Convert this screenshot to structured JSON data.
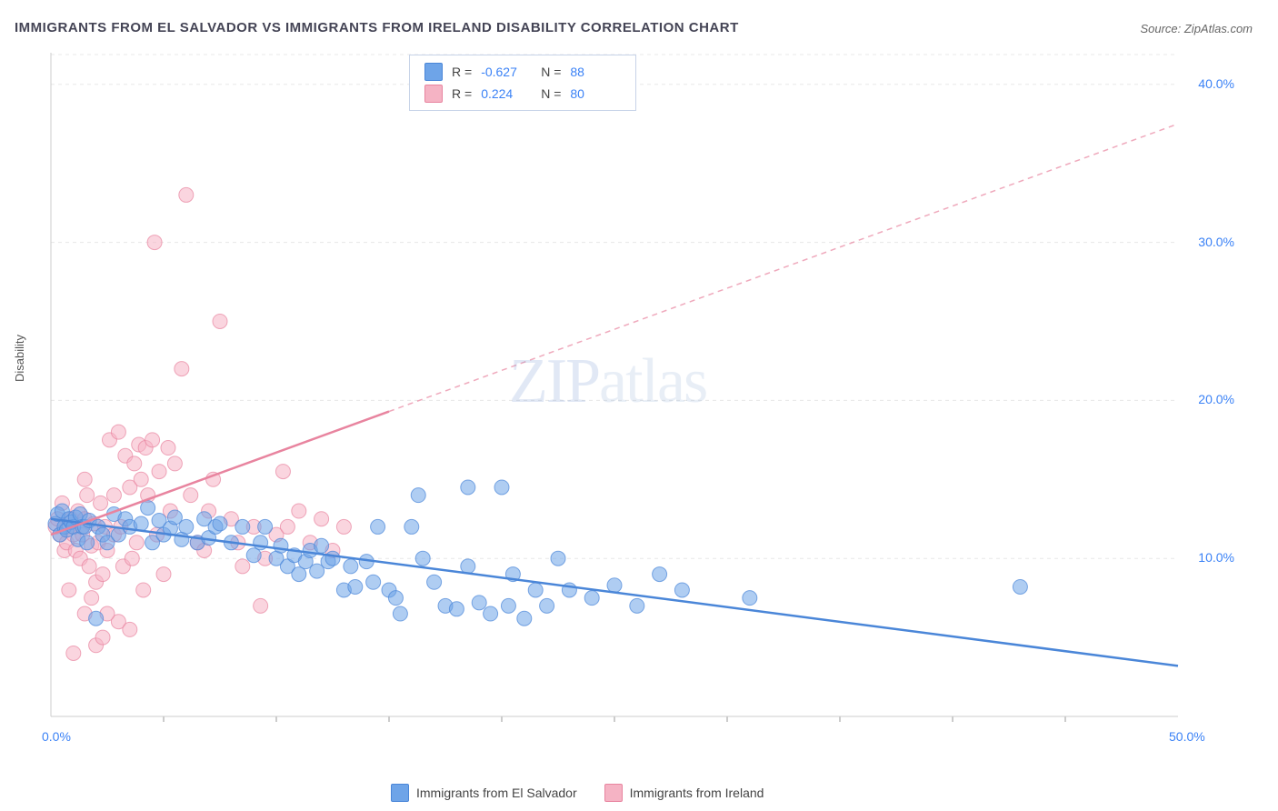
{
  "title": "IMMIGRANTS FROM EL SALVADOR VS IMMIGRANTS FROM IRELAND DISABILITY CORRELATION CHART",
  "source": "Source: ZipAtlas.com",
  "ylabel": "Disability",
  "watermark": {
    "a": "ZIP",
    "b": "atlas"
  },
  "chart": {
    "type": "scatter",
    "background_color": "#ffffff",
    "grid_color": "#e8e8e8",
    "border_color": "#cccccc",
    "xlim": [
      0,
      50
    ],
    "ylim": [
      0,
      42
    ],
    "x_ticks": [
      {
        "v": 0,
        "l": "0.0%"
      },
      {
        "v": 50,
        "l": "50.0%"
      }
    ],
    "y_ticks": [
      {
        "v": 10,
        "l": "10.0%"
      },
      {
        "v": 20,
        "l": "20.0%"
      },
      {
        "v": 30,
        "l": "30.0%"
      },
      {
        "v": 40,
        "l": "40.0%"
      }
    ],
    "x_minor_ticks": [
      5,
      10,
      15,
      20,
      25,
      30,
      35,
      40,
      45
    ],
    "marker_radius": 8,
    "marker_opacity": 0.55,
    "series": [
      {
        "key": "el_salvador",
        "label": "Immigrants from El Salvador",
        "color": "#6ea4e8",
        "stroke": "#4a86d8",
        "R": "-0.627",
        "N": "88",
        "trend": {
          "x1": 0,
          "y1": 12.5,
          "x2": 50,
          "y2": 3.2,
          "dash_from_x": 50
        },
        "points": [
          [
            0.2,
            12.2
          ],
          [
            0.3,
            12.8
          ],
          [
            0.4,
            11.5
          ],
          [
            0.5,
            13.0
          ],
          [
            0.6,
            12.0
          ],
          [
            0.7,
            11.8
          ],
          [
            0.8,
            12.5
          ],
          [
            0.9,
            12.3
          ],
          [
            1.0,
            12.0
          ],
          [
            1.1,
            12.6
          ],
          [
            1.2,
            11.2
          ],
          [
            1.3,
            12.8
          ],
          [
            1.4,
            12.0
          ],
          [
            1.5,
            12.0
          ],
          [
            1.6,
            11.0
          ],
          [
            1.7,
            12.4
          ],
          [
            2.0,
            6.2
          ],
          [
            2.1,
            12.0
          ],
          [
            2.3,
            11.5
          ],
          [
            2.5,
            11.0
          ],
          [
            2.8,
            12.8
          ],
          [
            3.0,
            11.5
          ],
          [
            3.3,
            12.5
          ],
          [
            3.5,
            12.0
          ],
          [
            4.0,
            12.2
          ],
          [
            4.3,
            13.2
          ],
          [
            4.5,
            11.0
          ],
          [
            4.8,
            12.4
          ],
          [
            5.0,
            11.5
          ],
          [
            5.3,
            11.9
          ],
          [
            5.5,
            12.6
          ],
          [
            5.8,
            11.2
          ],
          [
            6.0,
            12.0
          ],
          [
            6.5,
            11.0
          ],
          [
            6.8,
            12.5
          ],
          [
            7.0,
            11.3
          ],
          [
            7.3,
            12.0
          ],
          [
            7.5,
            12.2
          ],
          [
            8.0,
            11.0
          ],
          [
            8.5,
            12.0
          ],
          [
            9.0,
            10.2
          ],
          [
            9.3,
            11.0
          ],
          [
            9.5,
            12.0
          ],
          [
            10.0,
            10.0
          ],
          [
            10.2,
            10.8
          ],
          [
            10.5,
            9.5
          ],
          [
            10.8,
            10.2
          ],
          [
            11.0,
            9.0
          ],
          [
            11.3,
            9.8
          ],
          [
            11.5,
            10.5
          ],
          [
            11.8,
            9.2
          ],
          [
            12.0,
            10.8
          ],
          [
            12.3,
            9.8
          ],
          [
            12.5,
            10.0
          ],
          [
            13.0,
            8.0
          ],
          [
            13.3,
            9.5
          ],
          [
            13.5,
            8.2
          ],
          [
            14.0,
            9.8
          ],
          [
            14.3,
            8.5
          ],
          [
            14.5,
            12.0
          ],
          [
            15.0,
            8.0
          ],
          [
            15.3,
            7.5
          ],
          [
            15.5,
            6.5
          ],
          [
            16.0,
            12.0
          ],
          [
            16.3,
            14.0
          ],
          [
            16.5,
            10.0
          ],
          [
            17.0,
            8.5
          ],
          [
            17.5,
            7.0
          ],
          [
            18.0,
            6.8
          ],
          [
            18.5,
            9.5
          ],
          [
            19.0,
            7.2
          ],
          [
            19.5,
            6.5
          ],
          [
            20.0,
            14.5
          ],
          [
            20.3,
            7.0
          ],
          [
            20.5,
            9.0
          ],
          [
            21.0,
            6.2
          ],
          [
            21.5,
            8.0
          ],
          [
            22.0,
            7.0
          ],
          [
            22.5,
            10.0
          ],
          [
            23.0,
            8.0
          ],
          [
            24.0,
            7.5
          ],
          [
            25.0,
            8.3
          ],
          [
            26.0,
            7.0
          ],
          [
            27.0,
            9.0
          ],
          [
            28.0,
            8.0
          ],
          [
            31.0,
            7.5
          ],
          [
            43.0,
            8.2
          ],
          [
            18.5,
            14.5
          ]
        ]
      },
      {
        "key": "ireland",
        "label": "Immigrants from Ireland",
        "color": "#f5b3c4",
        "stroke": "#e8849f",
        "R": "0.224",
        "N": "80",
        "trend": {
          "x1": 0,
          "y1": 11.5,
          "x2": 50,
          "y2": 37.5,
          "dash_from_x": 15
        },
        "points": [
          [
            0.2,
            12.0
          ],
          [
            0.3,
            12.5
          ],
          [
            0.4,
            11.5
          ],
          [
            0.5,
            13.5
          ],
          [
            0.6,
            10.5
          ],
          [
            0.7,
            11.0
          ],
          [
            0.8,
            12.0
          ],
          [
            0.9,
            12.5
          ],
          [
            1.0,
            11.5
          ],
          [
            1.1,
            10.5
          ],
          [
            1.2,
            13.0
          ],
          [
            1.3,
            10.0
          ],
          [
            1.4,
            11.5
          ],
          [
            1.5,
            12.5
          ],
          [
            1.6,
            14.0
          ],
          [
            1.7,
            9.5
          ],
          [
            1.8,
            10.8
          ],
          [
            1.9,
            12.2
          ],
          [
            2.0,
            8.5
          ],
          [
            2.1,
            11.0
          ],
          [
            2.2,
            13.5
          ],
          [
            2.3,
            9.0
          ],
          [
            2.4,
            12.0
          ],
          [
            2.5,
            10.5
          ],
          [
            2.6,
            17.5
          ],
          [
            2.8,
            11.5
          ],
          [
            3.0,
            18.0
          ],
          [
            3.1,
            12.0
          ],
          [
            3.2,
            9.5
          ],
          [
            3.3,
            16.5
          ],
          [
            3.5,
            14.5
          ],
          [
            3.6,
            10.0
          ],
          [
            3.7,
            16.0
          ],
          [
            3.8,
            11.0
          ],
          [
            3.9,
            17.2
          ],
          [
            4.0,
            15.0
          ],
          [
            4.1,
            8.0
          ],
          [
            4.2,
            17.0
          ],
          [
            4.3,
            14.0
          ],
          [
            4.5,
            17.5
          ],
          [
            4.6,
            30.0
          ],
          [
            4.7,
            11.5
          ],
          [
            4.8,
            15.5
          ],
          [
            5.0,
            9.0
          ],
          [
            5.2,
            17.0
          ],
          [
            5.3,
            13.0
          ],
          [
            5.5,
            16.0
          ],
          [
            5.8,
            22.0
          ],
          [
            6.0,
            33.0
          ],
          [
            6.2,
            14.0
          ],
          [
            6.5,
            11.0
          ],
          [
            6.8,
            10.5
          ],
          [
            7.0,
            13.0
          ],
          [
            7.2,
            15.0
          ],
          [
            7.5,
            25.0
          ],
          [
            8.0,
            12.5
          ],
          [
            8.3,
            11.0
          ],
          [
            8.5,
            9.5
          ],
          [
            9.0,
            12.0
          ],
          [
            9.3,
            7.0
          ],
          [
            9.5,
            10.0
          ],
          [
            10.0,
            11.5
          ],
          [
            10.3,
            15.5
          ],
          [
            10.5,
            12.0
          ],
          [
            11.0,
            13.0
          ],
          [
            11.5,
            11.0
          ],
          [
            12.0,
            12.5
          ],
          [
            12.5,
            10.5
          ],
          [
            13.0,
            12.0
          ],
          [
            2.0,
            4.5
          ],
          [
            2.3,
            5.0
          ],
          [
            3.0,
            6.0
          ],
          [
            1.5,
            6.5
          ],
          [
            1.0,
            4.0
          ],
          [
            0.8,
            8.0
          ],
          [
            1.8,
            7.5
          ],
          [
            2.5,
            6.5
          ],
          [
            3.5,
            5.5
          ],
          [
            1.5,
            15.0
          ],
          [
            2.8,
            14.0
          ]
        ]
      }
    ]
  }
}
